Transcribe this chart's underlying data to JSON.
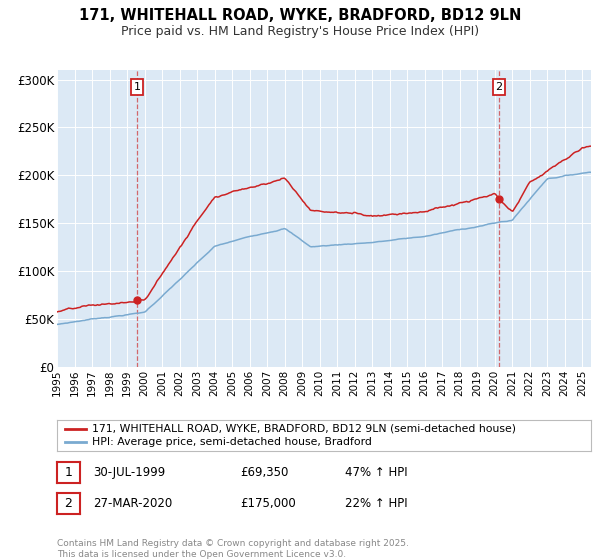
{
  "title_line1": "171, WHITEHALL ROAD, WYKE, BRADFORD, BD12 9LN",
  "title_line2": "Price paid vs. HM Land Registry's House Price Index (HPI)",
  "bg_color": "#dce9f5",
  "red_color": "#cc2222",
  "blue_color": "#7aaad0",
  "legend_label_red": "171, WHITEHALL ROAD, WYKE, BRADFORD, BD12 9LN (semi-detached house)",
  "legend_label_blue": "HPI: Average price, semi-detached house, Bradford",
  "annotation1_label": "1",
  "annotation1_date": "30-JUL-1999",
  "annotation1_price": "£69,350",
  "annotation1_hpi": "47% ↑ HPI",
  "annotation2_label": "2",
  "annotation2_date": "27-MAR-2020",
  "annotation2_price": "£175,000",
  "annotation2_hpi": "22% ↑ HPI",
  "sale1_year": 1999.58,
  "sale1_price": 69350,
  "sale2_year": 2020.24,
  "sale2_price": 175000,
  "ylim_max": 310000,
  "copyright_text": "Contains HM Land Registry data © Crown copyright and database right 2025.\nThis data is licensed under the Open Government Licence v3.0.",
  "yticks": [
    0,
    50000,
    100000,
    150000,
    200000,
    250000,
    300000
  ],
  "ytick_labels": [
    "£0",
    "£50K",
    "£100K",
    "£150K",
    "£200K",
    "£250K",
    "£300K"
  ],
  "xstart": 1995,
  "xend": 2025.5
}
